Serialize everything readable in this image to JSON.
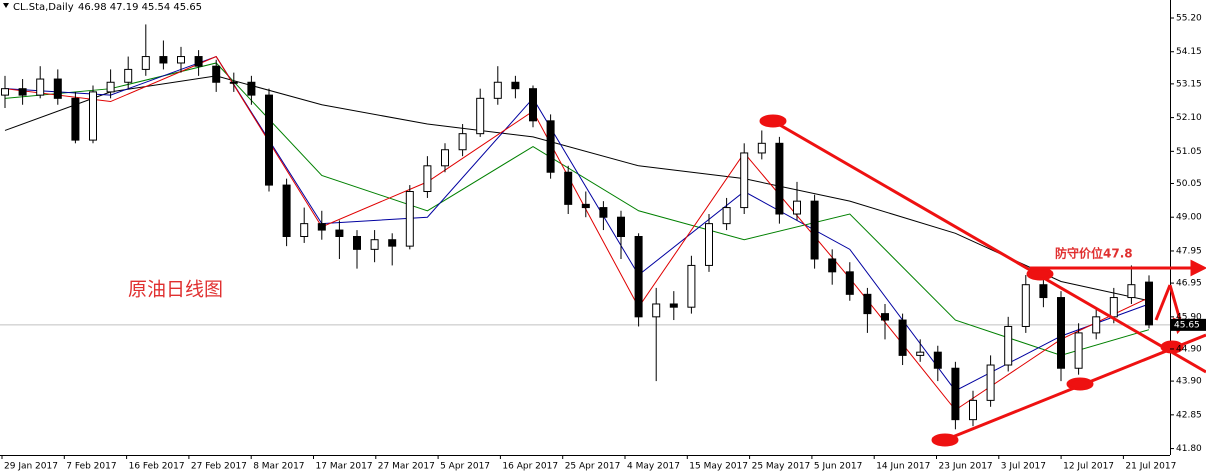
{
  "chart_data": {
    "type": "candlestick",
    "symbol": "CL.Sta,Daily",
    "header_values": "46.98 47.19 45.54 45.65",
    "annotation": "原油日线图",
    "defense_label": "防守价位47.8",
    "ylim": [
      41.6,
      55.76
    ],
    "yticks": [
      {
        "value": 55.2,
        "label": "55.20"
      },
      {
        "value": 54.15,
        "label": "54.15"
      },
      {
        "value": 53.15,
        "label": "53.15"
      },
      {
        "value": 52.1,
        "label": "52.10"
      },
      {
        "value": 51.05,
        "label": "51.05"
      },
      {
        "value": 50.05,
        "label": "50.05"
      },
      {
        "value": 49,
        "label": "49.00"
      },
      {
        "value": 47.95,
        "label": "47.95"
      },
      {
        "value": 46.95,
        "label": "46.95"
      },
      {
        "value": 45.9,
        "label": "45.90"
      },
      {
        "value": 44.9,
        "label": "44.90"
      },
      {
        "value": 43.9,
        "label": "43.90"
      },
      {
        "value": 42.85,
        "label": "42.85"
      },
      {
        "value": 41.8,
        "label": "41.80"
      }
    ],
    "last_price": {
      "value": 45.65,
      "label": "45.65"
    },
    "x_labels": [
      "29 Jan 2017",
      "7 Feb 2017",
      "16 Feb 2017",
      "27 Feb 2017",
      "8 Mar 2017",
      "17 Mar 2017",
      "27 Mar 2017",
      "5 Apr 2017",
      "16 Apr 2017",
      "25 Apr 2017",
      "4 May 2017",
      "15 May 2017",
      "25 May 2017",
      "5 Jun 2017",
      "14 Jun 2017",
      "23 Jun 2017",
      "3 Jul 2017",
      "12 Jul 2017",
      "21 Jul 2017"
    ],
    "ohlc": [
      [
        52.8,
        53.4,
        52.4,
        53.0
      ],
      [
        53.0,
        53.3,
        52.5,
        52.8
      ],
      [
        52.8,
        53.7,
        52.7,
        53.3
      ],
      [
        53.3,
        53.6,
        52.5,
        52.7
      ],
      [
        52.7,
        52.9,
        51.3,
        51.4
      ],
      [
        51.4,
        53.1,
        51.3,
        52.9
      ],
      [
        52.9,
        53.6,
        52.7,
        53.2
      ],
      [
        53.2,
        54.0,
        53.0,
        53.6
      ],
      [
        53.6,
        55.0,
        53.4,
        54.0
      ],
      [
        54.0,
        54.5,
        53.6,
        53.8
      ],
      [
        53.8,
        54.3,
        53.5,
        54.0
      ],
      [
        54.0,
        54.2,
        53.4,
        53.7
      ],
      [
        53.7,
        53.9,
        52.9,
        53.2
      ],
      [
        53.2,
        53.5,
        52.9,
        53.2
      ],
      [
        53.2,
        53.4,
        52.5,
        52.8
      ],
      [
        52.8,
        53.0,
        49.8,
        50.0
      ],
      [
        50.0,
        50.2,
        48.1,
        48.4
      ],
      [
        48.4,
        49.3,
        48.2,
        48.8
      ],
      [
        48.8,
        49.2,
        48.3,
        48.6
      ],
      [
        48.6,
        48.9,
        47.7,
        48.4
      ],
      [
        48.4,
        48.6,
        47.4,
        48.0
      ],
      [
        48.0,
        48.6,
        47.6,
        48.3
      ],
      [
        48.3,
        48.5,
        47.5,
        48.1
      ],
      [
        48.1,
        50.0,
        48.0,
        49.8
      ],
      [
        49.8,
        50.9,
        49.6,
        50.6
      ],
      [
        50.6,
        51.3,
        50.4,
        51.1
      ],
      [
        51.1,
        51.9,
        50.9,
        51.6
      ],
      [
        51.6,
        53.0,
        51.5,
        52.7
      ],
      [
        52.7,
        53.7,
        52.5,
        53.2
      ],
      [
        53.2,
        53.4,
        52.7,
        53.0
      ],
      [
        53.0,
        53.1,
        51.8,
        52.0
      ],
      [
        52.0,
        52.2,
        50.2,
        50.4
      ],
      [
        50.4,
        50.6,
        49.1,
        49.4
      ],
      [
        49.4,
        49.8,
        49.0,
        49.3
      ],
      [
        49.3,
        49.5,
        48.6,
        49.0
      ],
      [
        49.0,
        49.2,
        47.7,
        48.4
      ],
      [
        48.4,
        48.5,
        45.6,
        45.9
      ],
      [
        45.9,
        46.8,
        43.9,
        46.3
      ],
      [
        46.3,
        46.7,
        45.8,
        46.2
      ],
      [
        46.2,
        47.8,
        46.0,
        47.5
      ],
      [
        47.5,
        49.1,
        47.3,
        48.8
      ],
      [
        48.8,
        49.6,
        48.6,
        49.3
      ],
      [
        49.3,
        51.3,
        49.1,
        51.0
      ],
      [
        51.0,
        51.7,
        50.8,
        51.3
      ],
      [
        51.3,
        51.5,
        48.8,
        49.1
      ],
      [
        49.1,
        50.1,
        48.9,
        49.5
      ],
      [
        49.5,
        49.7,
        47.4,
        47.7
      ],
      [
        47.7,
        48.0,
        46.9,
        47.3
      ],
      [
        47.3,
        47.6,
        46.4,
        46.6
      ],
      [
        46.6,
        46.8,
        45.4,
        46.0
      ],
      [
        46.0,
        46.3,
        45.2,
        45.8
      ],
      [
        45.8,
        46.0,
        44.4,
        44.7
      ],
      [
        44.7,
        45.2,
        44.5,
        44.8
      ],
      [
        44.8,
        45.0,
        43.9,
        44.3
      ],
      [
        44.3,
        44.5,
        42.4,
        42.7
      ],
      [
        42.7,
        43.6,
        42.5,
        43.3
      ],
      [
        43.3,
        44.7,
        43.1,
        44.4
      ],
      [
        44.4,
        45.9,
        44.2,
        45.6
      ],
      [
        45.6,
        47.2,
        45.4,
        46.9
      ],
      [
        46.9,
        47.2,
        46.2,
        46.5
      ],
      [
        46.5,
        46.7,
        43.9,
        44.3
      ],
      [
        44.3,
        45.7,
        44.1,
        45.4
      ],
      [
        45.4,
        46.2,
        45.2,
        45.9
      ],
      [
        45.9,
        46.8,
        45.7,
        46.5
      ],
      [
        46.5,
        47.5,
        46.3,
        46.9
      ],
      [
        46.98,
        47.19,
        45.54,
        45.65
      ]
    ],
    "ma_lines": [
      {
        "color": "#000000",
        "x": [
          0,
          6,
          12,
          18,
          24,
          30,
          36,
          42,
          48,
          54,
          60,
          65
        ],
        "values": [
          51.7,
          52.9,
          53.4,
          52.5,
          51.9,
          51.5,
          50.6,
          50.2,
          49.5,
          48.5,
          47.0,
          46.4
        ]
      },
      {
        "color": "#008000",
        "x": [
          0,
          6,
          12,
          18,
          24,
          30,
          36,
          42,
          48,
          54,
          60,
          65
        ],
        "values": [
          52.7,
          53.0,
          53.8,
          50.3,
          49.2,
          51.2,
          49.2,
          48.3,
          49.1,
          45.8,
          44.7,
          45.5
        ]
      },
      {
        "color": "#0000a0",
        "x": [
          0,
          6,
          12,
          18,
          24,
          30,
          36,
          42,
          48,
          54,
          60,
          65
        ],
        "values": [
          53.0,
          52.8,
          54.0,
          48.8,
          49.0,
          52.7,
          47.2,
          49.8,
          48.0,
          43.6,
          45.3,
          46.3
        ]
      },
      {
        "color": "#e00000",
        "x": [
          0,
          6,
          12,
          18,
          24,
          30,
          36,
          42,
          48,
          54,
          60,
          65
        ],
        "values": [
          53.0,
          52.6,
          54.0,
          48.7,
          50.1,
          52.3,
          46.2,
          51.0,
          47.1,
          43.0,
          45.2,
          46.5
        ]
      }
    ]
  }
}
